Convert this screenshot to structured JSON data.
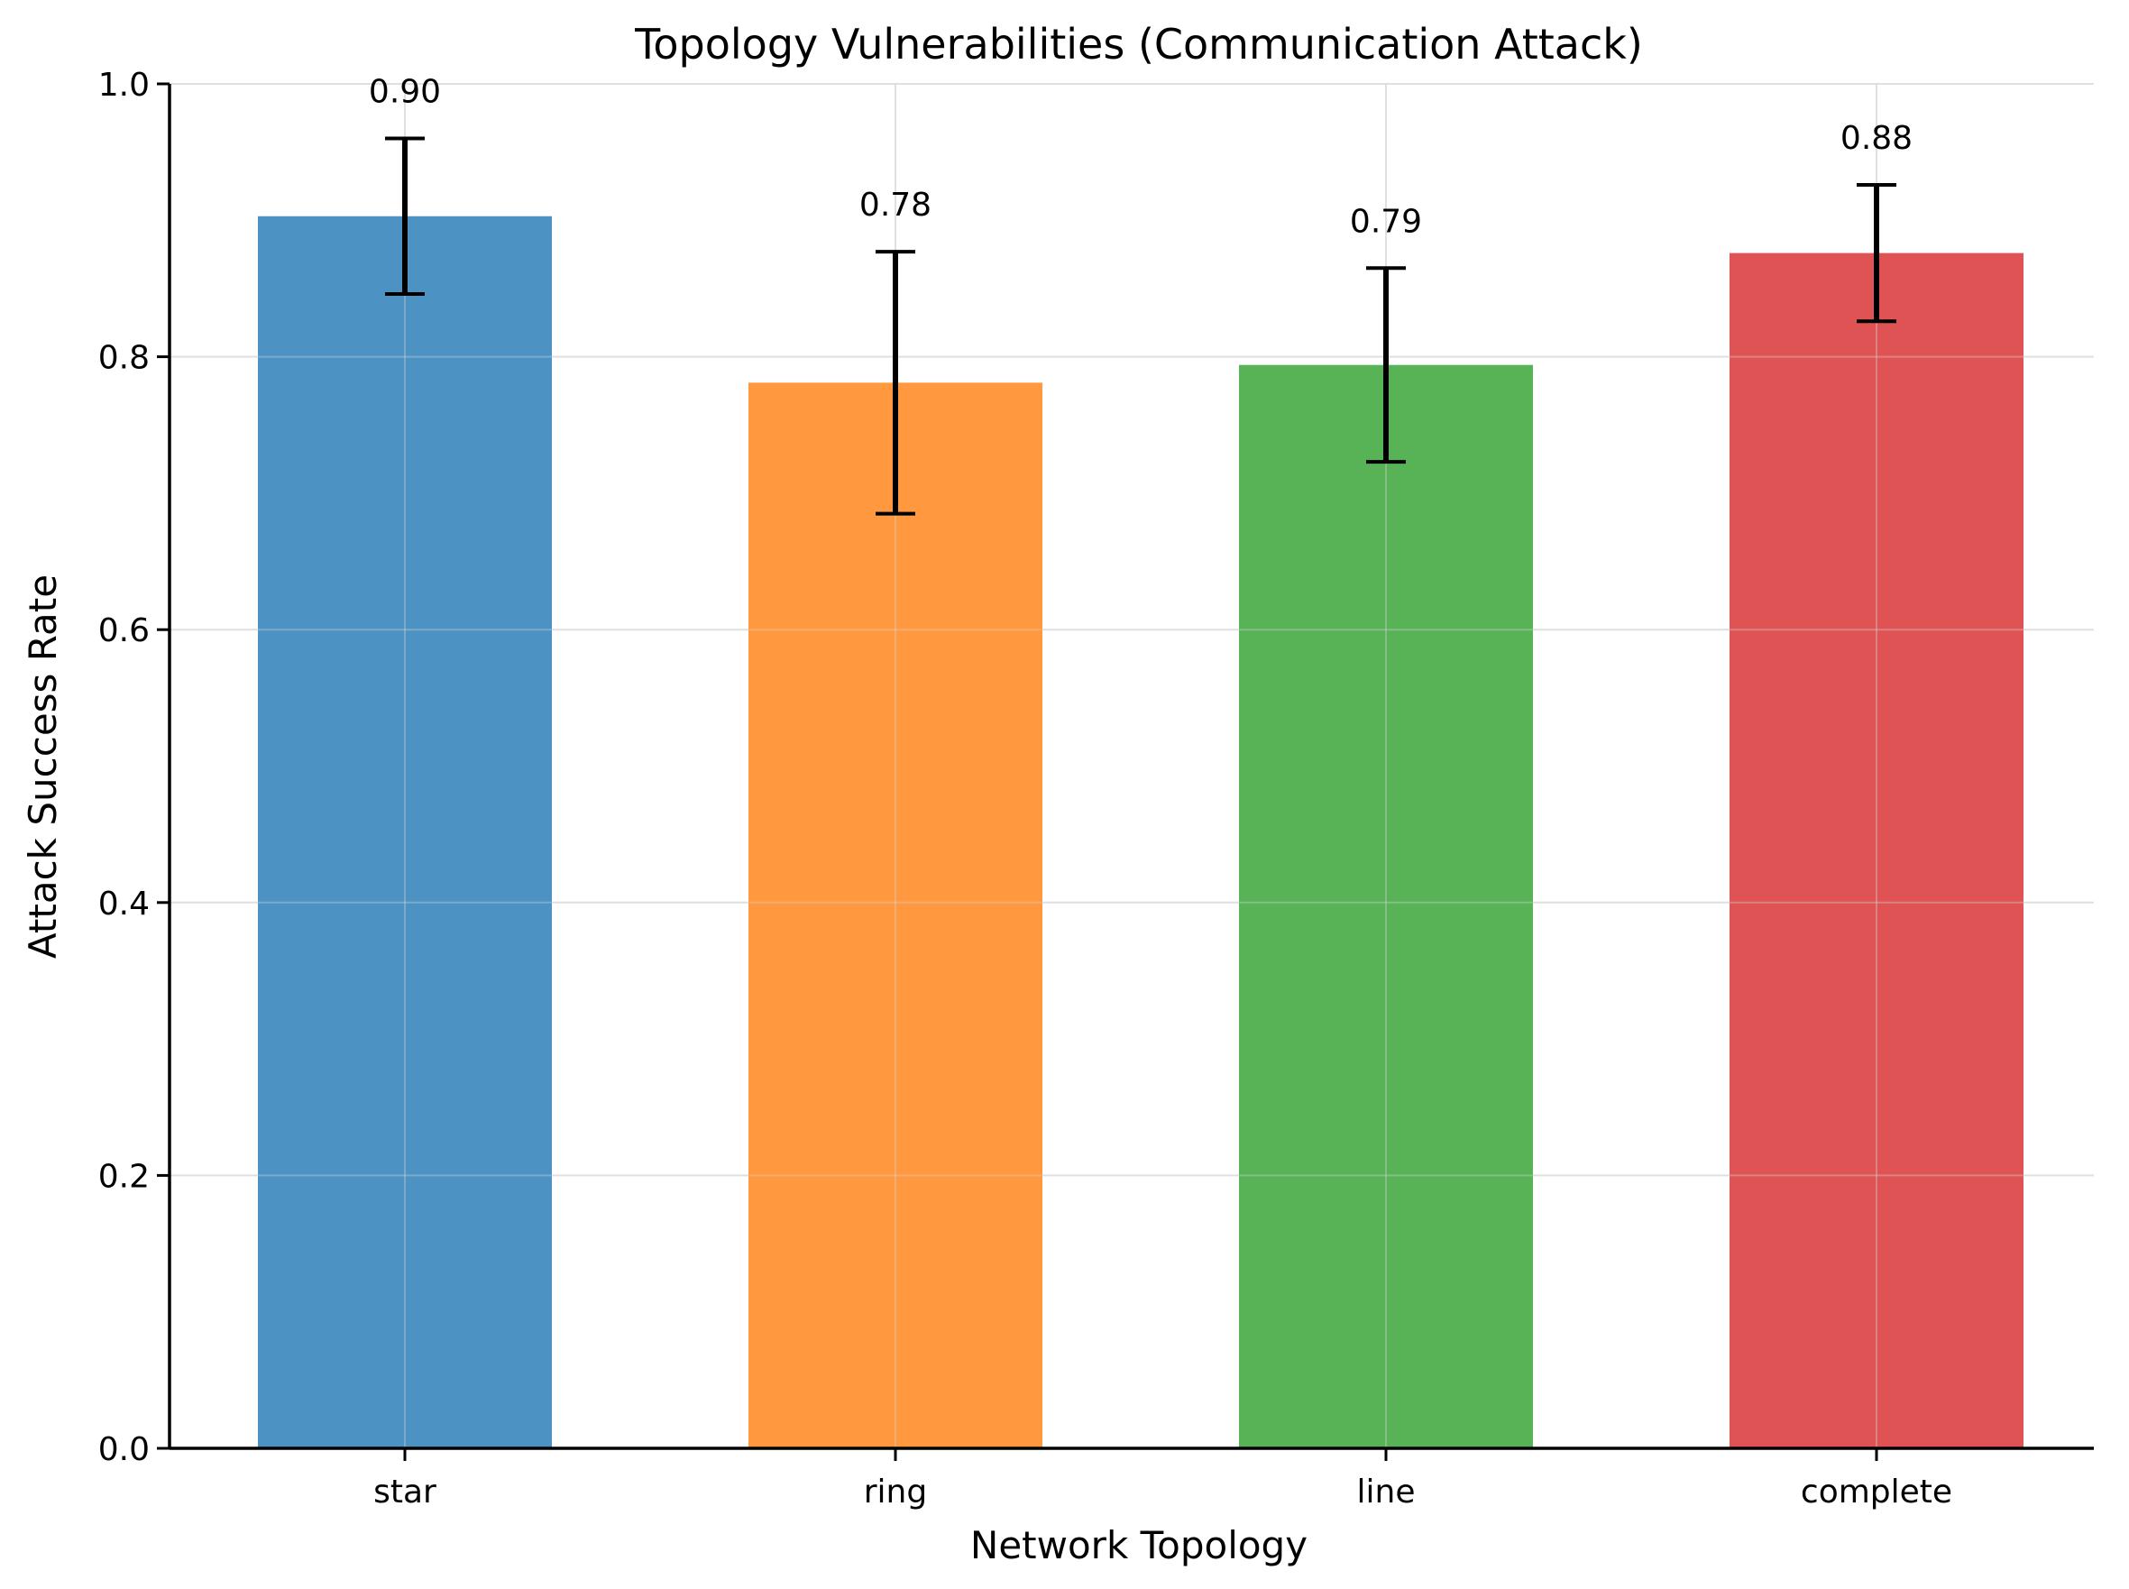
{
  "chart_data": {
    "type": "bar",
    "title": "Topology Vulnerabilities (Communication Attack)",
    "xlabel": "Network Topology",
    "ylabel": "Attack Success Rate",
    "categories": [
      "star",
      "ring",
      "line",
      "complete"
    ],
    "values": [
      0.903,
      0.781,
      0.794,
      0.876
    ],
    "value_labels": [
      "0.90",
      "0.78",
      "0.79",
      "0.88"
    ],
    "error": [
      0.057,
      0.096,
      0.071,
      0.05
    ],
    "colors": [
      "#4c92c3",
      "#ff983e",
      "#57b356",
      "#df5355"
    ],
    "ylim": [
      0.0,
      1.0
    ],
    "yticks": [
      0.0,
      0.2,
      0.4,
      0.6,
      0.8,
      1.0
    ],
    "ytick_labels": [
      "0.0",
      "0.2",
      "0.4",
      "0.6",
      "0.8",
      "1.0"
    ],
    "grid": true,
    "legend": "none"
  }
}
